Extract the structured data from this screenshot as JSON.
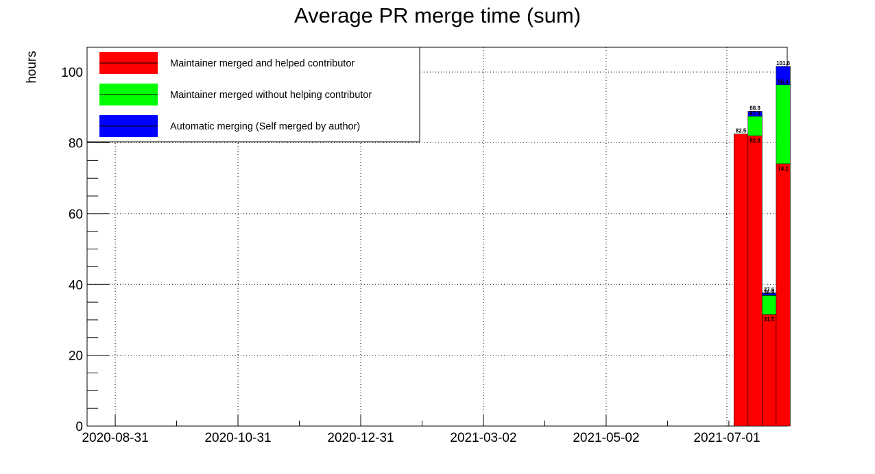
{
  "chart_data": {
    "type": "bar",
    "stacked": true,
    "title": "Average PR merge time (sum)",
    "xlabel": "",
    "ylabel": "hours",
    "ylim": [
      0,
      107
    ],
    "yticks": [
      0,
      20,
      40,
      60,
      80,
      100
    ],
    "xlim": [
      "2020-08-17",
      "2021-07-31"
    ],
    "xticks": [
      "2020-08-31",
      "2020-10-31",
      "2020-12-31",
      "2021-03-02",
      "2021-05-02",
      "2021-07-01"
    ],
    "grid": true,
    "legend_position": "top-left",
    "bar_width_days": 7,
    "categories": [
      "2021-07-08",
      "2021-07-15",
      "2021-07-22",
      "2021-07-29"
    ],
    "series": [
      {
        "name": "Maintainer merged and helped contributor",
        "color": "#ff0000",
        "values": [
          82.5,
          82.0,
          31.5,
          74.1
        ]
      },
      {
        "name": "Maintainer merged without helping contributor",
        "color": "#00ff00",
        "values": [
          0,
          5.5,
          5.4,
          22.3
        ]
      },
      {
        "name": "Automatic merging (Self merged by author)",
        "color": "#0000ff",
        "values": [
          0,
          1.4,
          0.7,
          5.2
        ]
      }
    ],
    "data_labels": [
      [
        "82.5",
        "",
        "",
        ""
      ],
      [
        "82.0",
        "87.5",
        "88.9",
        ""
      ],
      [
        "31.5",
        "36.9",
        "37.6",
        ""
      ],
      [
        "74.1",
        "96.4",
        "101.6",
        ""
      ]
    ]
  }
}
